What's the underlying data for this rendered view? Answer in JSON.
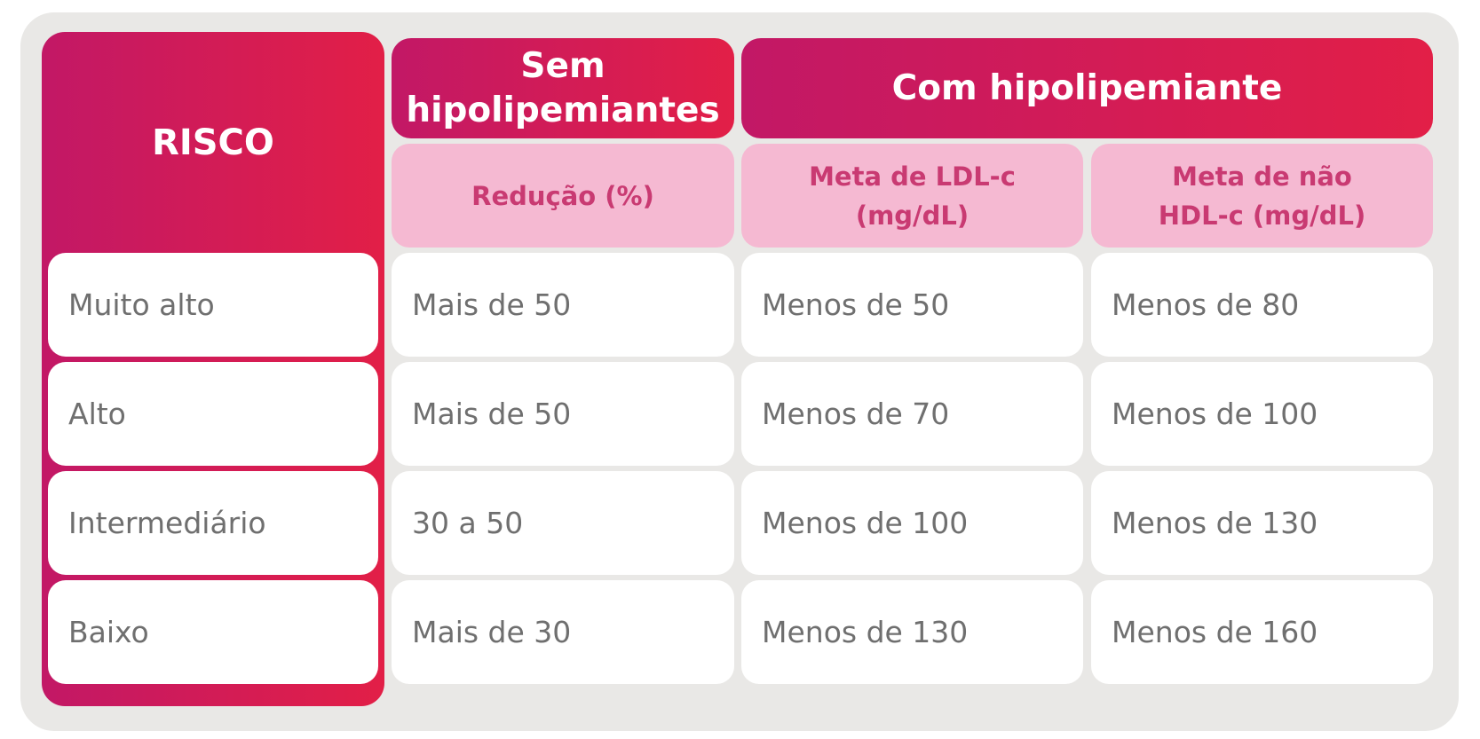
{
  "risk_header": "RISCO",
  "group_headers": {
    "without": [
      "Sem",
      "hipolipemiantes"
    ],
    "with": "Com hipolipemiante"
  },
  "sub_headers": {
    "reduction": "Redução (%)",
    "ldl": [
      "Meta de LDL-c",
      "(mg/dL)"
    ],
    "non_hdl": [
      "Meta de não",
      "HDL-c (mg/dL)"
    ]
  },
  "rows": [
    {
      "risk": "Muito alto",
      "reduction": "Mais de 50",
      "ldl": "Menos de 50",
      "non_hdl": "Menos de 80"
    },
    {
      "risk": "Alto",
      "reduction": "Mais de 50",
      "ldl": "Menos de 70",
      "non_hdl": "Menos de 100"
    },
    {
      "risk": "Intermediário",
      "reduction": "30 a 50",
      "ldl": "Menos de 100",
      "non_hdl": "Menos de 130"
    },
    {
      "risk": "Baixo",
      "reduction": "Mais de 30",
      "ldl": "Menos de 130",
      "non_hdl": "Menos de 160"
    }
  ],
  "colors": {
    "gradient_start": "#c21866",
    "gradient_end": "#e21f47",
    "subheader_bg": "#f5b9d2",
    "subheader_text": "#c93a72",
    "cell_text": "#6f6f6f",
    "frame_bg": "#e9e8e6"
  }
}
